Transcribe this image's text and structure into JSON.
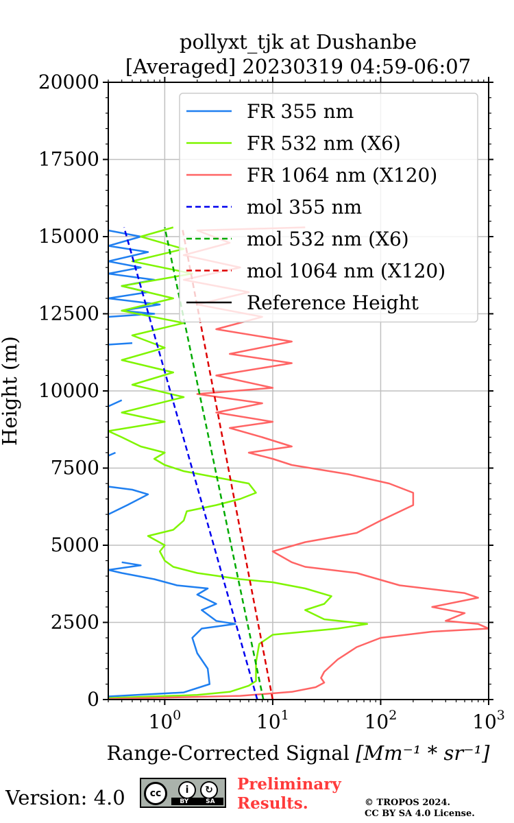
{
  "chart_data": {
    "type": "line",
    "title_line1": "pollyxt_tjk at Dushanbe",
    "title_line2": "[Averaged] 20230319 04:59-06:07",
    "xlabel": "Range-Corrected Signal",
    "xlabel_unit": "[Mm⁻¹ * sr⁻¹]",
    "ylabel": "Height (m)",
    "xscale": "log",
    "xlim": [
      0.3,
      1000
    ],
    "ylim": [
      0,
      20000
    ],
    "yticks": [
      0,
      2500,
      5000,
      7500,
      10000,
      12500,
      15000,
      17500,
      20000
    ],
    "xticks": [
      1,
      10,
      100,
      1000
    ],
    "xtick_labels": [
      {
        "base": "10",
        "exp": "0"
      },
      {
        "base": "10",
        "exp": "1"
      },
      {
        "base": "10",
        "exp": "2"
      },
      {
        "base": "10",
        "exp": "3"
      }
    ],
    "grid": true,
    "legend_position": "top-right",
    "series": [
      {
        "name": "FR 355 nm",
        "color": "#1f7ff0",
        "style": "solid",
        "points": [
          [
            0.3,
            100
          ],
          [
            0.8,
            180
          ],
          [
            1.5,
            230
          ],
          [
            2.6,
            500
          ],
          [
            2.5,
            1000
          ],
          [
            2.0,
            1500
          ],
          [
            1.8,
            2000
          ],
          [
            2.2,
            2300
          ],
          [
            4.5,
            2450
          ],
          [
            3.0,
            2550
          ],
          [
            2.2,
            2900
          ],
          [
            3.0,
            3100
          ],
          [
            2.0,
            3400
          ],
          [
            2.5,
            3600
          ],
          [
            1.3,
            3700
          ],
          [
            0.8,
            3900
          ],
          [
            0.4,
            4100
          ],
          [
            0.3,
            4200
          ],
          [
            0.6,
            4350
          ],
          [
            0.4,
            4450
          ],
          [
            null,
            4500
          ],
          [
            0.3,
            6000
          ],
          [
            0.45,
            6300
          ],
          [
            0.7,
            6650
          ],
          [
            0.5,
            6800
          ],
          [
            0.3,
            6900
          ],
          [
            null,
            7000
          ],
          [
            0.3,
            7900
          ],
          [
            0.35,
            8000
          ],
          [
            null,
            8100
          ],
          [
            0.3,
            9500
          ],
          [
            0.4,
            9700
          ],
          [
            null,
            9800
          ],
          [
            0.3,
            11500
          ],
          [
            0.5,
            11550
          ],
          [
            null,
            11600
          ],
          [
            0.3,
            12400
          ],
          [
            0.8,
            12500
          ],
          [
            0.4,
            12600
          ],
          [
            0.9,
            12800
          ],
          [
            0.3,
            13000
          ],
          [
            0.7,
            13200
          ],
          [
            0.4,
            13400
          ],
          [
            0.8,
            13600
          ],
          [
            0.3,
            13800
          ],
          [
            0.6,
            14000
          ],
          [
            0.3,
            14200
          ],
          [
            0.7,
            14500
          ],
          [
            0.3,
            14700
          ],
          [
            0.6,
            15000
          ],
          [
            0.3,
            15200
          ]
        ]
      },
      {
        "name": "FR 532 nm (X6)",
        "color": "#7ff500",
        "style": "solid",
        "points": [
          [
            0.3,
            50
          ],
          [
            2,
            150
          ],
          [
            4,
            250
          ],
          [
            6,
            450
          ],
          [
            7,
            600
          ],
          [
            7,
            1200
          ],
          [
            7.5,
            1800
          ],
          [
            10,
            2100
          ],
          [
            40,
            2300
          ],
          [
            75,
            2450
          ],
          [
            30,
            2600
          ],
          [
            20,
            2900
          ],
          [
            30,
            3100
          ],
          [
            35,
            3350
          ],
          [
            20,
            3600
          ],
          [
            10,
            3800
          ],
          [
            5,
            3900
          ],
          [
            2,
            4100
          ],
          [
            1.2,
            4300
          ],
          [
            1.0,
            4500
          ],
          [
            0.9,
            4800
          ],
          [
            1.0,
            5000
          ],
          [
            0.7,
            5300
          ],
          [
            1.2,
            5500
          ],
          [
            1.5,
            5800
          ],
          [
            1.6,
            6100
          ],
          [
            3,
            6300
          ],
          [
            5,
            6500
          ],
          [
            7,
            6700
          ],
          [
            6,
            7000
          ],
          [
            3,
            7200
          ],
          [
            1.5,
            7400
          ],
          [
            1.0,
            7600
          ],
          [
            0.8,
            7800
          ],
          [
            1.0,
            8000
          ],
          [
            0.6,
            8200
          ],
          [
            0.4,
            8500
          ],
          [
            0.3,
            8700
          ],
          [
            1.0,
            9000
          ],
          [
            0.4,
            9300
          ],
          [
            1.5,
            9800
          ],
          [
            0.5,
            10200
          ],
          [
            1.2,
            10600
          ],
          [
            0.4,
            11000
          ],
          [
            1.0,
            11400
          ],
          [
            0.5,
            11800
          ],
          [
            1.5,
            12200
          ],
          [
            0.4,
            12600
          ],
          [
            1.2,
            13000
          ],
          [
            0.4,
            13400
          ],
          [
            1.8,
            13800
          ],
          [
            0.5,
            14200
          ],
          [
            1.5,
            14600
          ],
          [
            0.6,
            15000
          ],
          [
            1.2,
            15300
          ]
        ]
      },
      {
        "name": "FR 1064 nm (X120)",
        "color": "#ff6464",
        "style": "solid",
        "points": [
          [
            0.3,
            20
          ],
          [
            5,
            120
          ],
          [
            15,
            250
          ],
          [
            25,
            400
          ],
          [
            30,
            550
          ],
          [
            28,
            700
          ],
          [
            30,
            900
          ],
          [
            40,
            1300
          ],
          [
            60,
            1700
          ],
          [
            100,
            2000
          ],
          [
            300,
            2200
          ],
          [
            1000,
            2300
          ],
          [
            800,
            2450
          ],
          [
            400,
            2550
          ],
          [
            600,
            2800
          ],
          [
            300,
            3000
          ],
          [
            800,
            3300
          ],
          [
            600,
            3450
          ],
          [
            150,
            3700
          ],
          [
            60,
            4100
          ],
          [
            20,
            4300
          ],
          [
            15,
            4450
          ],
          [
            10,
            4800
          ],
          [
            20,
            5100
          ],
          [
            60,
            5400
          ],
          [
            100,
            5800
          ],
          [
            200,
            6300
          ],
          [
            200,
            6700
          ],
          [
            120,
            7000
          ],
          [
            50,
            7300
          ],
          [
            15,
            7600
          ],
          [
            10,
            7800
          ],
          [
            6,
            8000
          ],
          [
            15,
            8200
          ],
          [
            8,
            8500
          ],
          [
            4,
            8800
          ],
          [
            10,
            9000
          ],
          [
            3,
            9300
          ],
          [
            8,
            9600
          ],
          [
            2,
            9900
          ],
          [
            10,
            10100
          ],
          [
            3,
            10500
          ],
          [
            15,
            10900
          ],
          [
            4,
            11200
          ],
          [
            15,
            11600
          ],
          [
            3,
            12000
          ],
          [
            8,
            12400
          ],
          [
            2,
            12800
          ],
          [
            6,
            13200
          ],
          [
            1.5,
            13600
          ],
          [
            5,
            14000
          ],
          [
            1.5,
            14400
          ],
          [
            4,
            14800
          ],
          [
            2,
            15200
          ],
          [
            20,
            15300
          ]
        ]
      },
      {
        "name": "mol 355 nm",
        "color": "#0000ee",
        "style": "dashed",
        "points": [
          [
            7.2,
            0
          ],
          [
            0.42,
            15300
          ]
        ]
      },
      {
        "name": "mol 532 nm (X6)",
        "color": "#00aa00",
        "style": "dashed",
        "points": [
          [
            8.2,
            0
          ],
          [
            1.0,
            15300
          ]
        ]
      },
      {
        "name": "mol 1064 nm (X120)",
        "color": "#dd0000",
        "style": "dashed",
        "points": [
          [
            10.0,
            0
          ],
          [
            1.45,
            15300
          ]
        ]
      },
      {
        "name": "Reference Height",
        "color": "#000000",
        "style": "solid",
        "points": []
      }
    ]
  },
  "footer": {
    "version": "Version: 4.0",
    "cc_mark": "cc",
    "cc_icons": [
      "cc-by-icon",
      "cc-sa-icon"
    ],
    "cc_by": "BY",
    "cc_sa": "SA",
    "preliminary_line1": "Preliminary",
    "preliminary_line2": "Results.",
    "copyright_line1": "© TROPOS 2024.",
    "copyright_line2": "CC BY SA 4.0 License."
  }
}
